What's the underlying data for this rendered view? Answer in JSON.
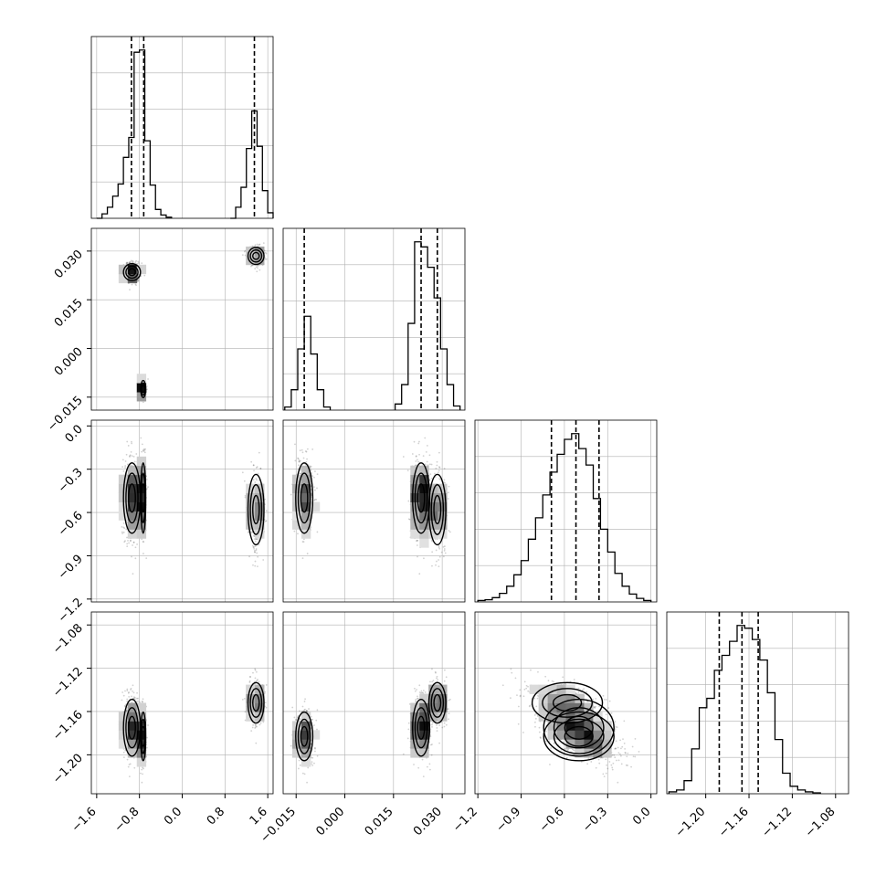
{
  "chart_data": {
    "type": "corner",
    "parameters": [
      {
        "range": [
          -1.7,
          1.7
        ],
        "ticks": [
          "−1.6",
          "−0.8",
          "0.0",
          "0.8",
          "1.6"
        ],
        "tick_values": [
          -1.6,
          -0.8,
          0.0,
          0.8,
          1.6
        ],
        "quantiles": [
          -0.95,
          -0.72,
          1.35
        ],
        "histogram": [
          {
            "x": -1.55,
            "y": 0
          },
          {
            "x": -1.45,
            "y": 4
          },
          {
            "x": -1.35,
            "y": 10
          },
          {
            "x": -1.25,
            "y": 20
          },
          {
            "x": -1.15,
            "y": 31
          },
          {
            "x": -1.05,
            "y": 55
          },
          {
            "x": -0.95,
            "y": 73
          },
          {
            "x": -0.85,
            "y": 150
          },
          {
            "x": -0.75,
            "y": 152
          },
          {
            "x": -0.65,
            "y": 70
          },
          {
            "x": -0.55,
            "y": 30
          },
          {
            "x": -0.45,
            "y": 8
          },
          {
            "x": -0.35,
            "y": 3
          },
          {
            "x": -0.25,
            "y": 1
          },
          {
            "x": 0.95,
            "y": 0
          },
          {
            "x": 1.05,
            "y": 10
          },
          {
            "x": 1.15,
            "y": 28
          },
          {
            "x": 1.25,
            "y": 63
          },
          {
            "x": 1.35,
            "y": 97
          },
          {
            "x": 1.45,
            "y": 65
          },
          {
            "x": 1.55,
            "y": 25
          },
          {
            "x": 1.65,
            "y": 5
          }
        ]
      },
      {
        "range": [
          -0.019,
          0.037
        ],
        "ticks": [
          "−0.015",
          "0.000",
          "0.015",
          "0.030"
        ],
        "tick_values": [
          -0.015,
          0.0,
          0.015,
          0.03
        ],
        "quantiles": [
          -0.0125,
          0.0235,
          0.0285
        ],
        "histogram": [
          {
            "x": -0.0175,
            "y": 3
          },
          {
            "x": -0.0155,
            "y": 20
          },
          {
            "x": -0.0135,
            "y": 60
          },
          {
            "x": -0.0115,
            "y": 92
          },
          {
            "x": -0.0095,
            "y": 55
          },
          {
            "x": -0.0075,
            "y": 20
          },
          {
            "x": -0.0055,
            "y": 3
          },
          {
            "x": 0.0165,
            "y": 6
          },
          {
            "x": 0.0185,
            "y": 25
          },
          {
            "x": 0.0205,
            "y": 85
          },
          {
            "x": 0.0225,
            "y": 165
          },
          {
            "x": 0.0245,
            "y": 160
          },
          {
            "x": 0.0265,
            "y": 140
          },
          {
            "x": 0.0285,
            "y": 110
          },
          {
            "x": 0.0305,
            "y": 60
          },
          {
            "x": 0.0325,
            "y": 25
          },
          {
            "x": 0.0345,
            "y": 4
          }
        ]
      },
      {
        "range": [
          -1.22,
          0.04
        ],
        "ticks": [
          "−1.2",
          "−0.9",
          "−0.6",
          "−0.3",
          "0.0"
        ],
        "tick_values": [
          -1.2,
          -0.9,
          -0.6,
          -0.3,
          0.0
        ],
        "quantiles": [
          -0.69,
          -0.52,
          -0.36
        ],
        "histogram": [
          {
            "x": -1.175,
            "y": 2
          },
          {
            "x": -1.125,
            "y": 3
          },
          {
            "x": -1.075,
            "y": 6
          },
          {
            "x": -1.025,
            "y": 12
          },
          {
            "x": -0.975,
            "y": 22
          },
          {
            "x": -0.925,
            "y": 38
          },
          {
            "x": -0.875,
            "y": 58
          },
          {
            "x": -0.825,
            "y": 88
          },
          {
            "x": -0.775,
            "y": 118
          },
          {
            "x": -0.725,
            "y": 150
          },
          {
            "x": -0.675,
            "y": 182
          },
          {
            "x": -0.625,
            "y": 207
          },
          {
            "x": -0.575,
            "y": 228
          },
          {
            "x": -0.525,
            "y": 236
          },
          {
            "x": -0.475,
            "y": 215
          },
          {
            "x": -0.425,
            "y": 192
          },
          {
            "x": -0.375,
            "y": 145
          },
          {
            "x": -0.325,
            "y": 102
          },
          {
            "x": -0.275,
            "y": 70
          },
          {
            "x": -0.225,
            "y": 40
          },
          {
            "x": -0.175,
            "y": 22
          },
          {
            "x": -0.125,
            "y": 11
          },
          {
            "x": -0.075,
            "y": 5
          },
          {
            "x": -0.025,
            "y": 2
          }
        ]
      },
      {
        "range": [
          -1.236,
          -1.068
        ],
        "ticks": [
          "−1.20",
          "−1.16",
          "−1.12",
          "−1.08"
        ],
        "tick_values": [
          -1.2,
          -1.16,
          -1.12,
          -1.08
        ],
        "quantiles": [
          -1.1875,
          -1.1665,
          -1.1515
        ],
        "histogram": [
          {
            "x": -1.2305,
            "y": 2
          },
          {
            "x": -1.2235,
            "y": 4
          },
          {
            "x": -1.2165,
            "y": 14
          },
          {
            "x": -1.2095,
            "y": 48
          },
          {
            "x": -1.2025,
            "y": 92
          },
          {
            "x": -1.1955,
            "y": 102
          },
          {
            "x": -1.1885,
            "y": 132
          },
          {
            "x": -1.1815,
            "y": 148
          },
          {
            "x": -1.1745,
            "y": 163
          },
          {
            "x": -1.1675,
            "y": 180
          },
          {
            "x": -1.1605,
            "y": 177
          },
          {
            "x": -1.1535,
            "y": 165
          },
          {
            "x": -1.1465,
            "y": 143
          },
          {
            "x": -1.1395,
            "y": 108
          },
          {
            "x": -1.1325,
            "y": 58
          },
          {
            "x": -1.1255,
            "y": 22
          },
          {
            "x": -1.1185,
            "y": 8
          },
          {
            "x": -1.1115,
            "y": 4
          },
          {
            "x": -1.1045,
            "y": 2
          },
          {
            "x": -1.0975,
            "y": 1
          }
        ]
      }
    ],
    "clusters": [
      {
        "weight": 0.45,
        "mean": [
          -0.94,
          0.0235,
          -0.5,
          -1.175
        ],
        "sd": [
          0.085,
          0.0014,
          0.13,
          0.014
        ]
      },
      {
        "weight": 0.3,
        "mean": [
          -0.73,
          -0.0125,
          -0.5,
          -1.183
        ],
        "sd": [
          0.025,
          0.0014,
          0.13,
          0.012
        ]
      },
      {
        "weight": 0.25,
        "mean": [
          1.38,
          0.0285,
          -0.58,
          -1.152
        ],
        "sd": [
          0.08,
          0.0014,
          0.13,
          0.01
        ]
      }
    ],
    "contour_levels": [
      0.25,
      0.5,
      0.8
    ],
    "grid": true,
    "xlabel": "",
    "ylabel": ""
  }
}
